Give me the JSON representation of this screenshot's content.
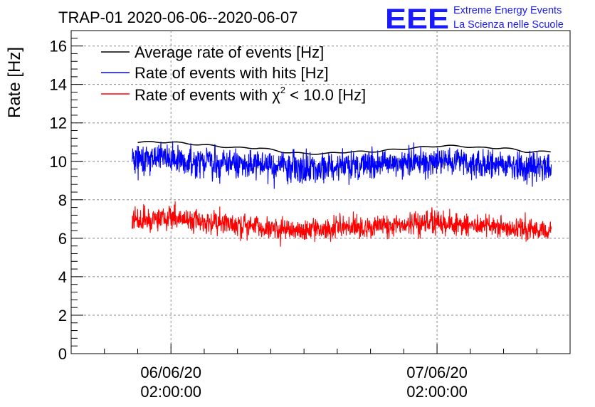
{
  "chart_data": {
    "type": "line",
    "title": "TRAP-01 2020-06-06--2020-06-07",
    "xlabel": "",
    "ylabel": "Rate [Hz]",
    "ylim": [
      0,
      16.8
    ],
    "yticks": [
      "0",
      "2",
      "4",
      "6",
      "8",
      "10",
      "12",
      "14",
      "16"
    ],
    "xlim_hours": [
      -9.0,
      36.0
    ],
    "xticks": [
      {
        "hours": 0,
        "date": "06/06/20",
        "time": "02:00:00"
      },
      {
        "hours": 24,
        "date": "07/06/20",
        "time": "02:00:00"
      }
    ],
    "grid": true,
    "legend_position": "top-left",
    "series": [
      {
        "name": "Average rate of events [Hz]",
        "color": "#000000",
        "style": "smooth",
        "x_hours": [
          -3.0,
          0,
          2,
          4,
          6,
          8,
          10,
          12,
          14,
          16,
          18,
          20,
          22,
          24,
          26,
          28,
          30,
          32,
          34.3
        ],
        "values": [
          11.0,
          11.0,
          10.9,
          10.8,
          10.7,
          10.7,
          10.5,
          10.4,
          10.4,
          10.5,
          10.5,
          10.6,
          10.7,
          10.8,
          10.8,
          10.7,
          10.7,
          10.5,
          10.5
        ]
      },
      {
        "name": "Rate of events with hits [Hz]",
        "color": "#0000ff",
        "style": "fluctuating",
        "x_hours": [
          -3.5,
          0,
          2,
          4,
          6,
          8,
          10,
          12,
          14,
          16,
          18,
          20,
          22,
          24,
          26,
          28,
          30,
          32,
          34.3
        ],
        "values": [
          10.1,
          10.2,
          10.0,
          9.9,
          9.8,
          9.8,
          9.7,
          9.6,
          9.6,
          9.8,
          9.8,
          9.9,
          9.9,
          10.0,
          10.0,
          9.9,
          9.8,
          9.7,
          9.6
        ],
        "noise": 0.38
      },
      {
        "name": "Rate of events with χ² < 10.0 [Hz]",
        "color": "#ff0000",
        "style": "fluctuating",
        "x_hours": [
          -3.5,
          0,
          2,
          4,
          6,
          8,
          10,
          12,
          14,
          16,
          18,
          20,
          22,
          24,
          26,
          28,
          30,
          32,
          34.3
        ],
        "values": [
          6.9,
          7.0,
          6.9,
          6.8,
          6.7,
          6.6,
          6.5,
          6.4,
          6.5,
          6.6,
          6.6,
          6.7,
          6.7,
          6.8,
          6.7,
          6.7,
          6.6,
          6.5,
          6.4
        ],
        "noise": 0.3
      }
    ]
  },
  "legend": {
    "avg_label": "Average rate of events [Hz]",
    "hits_label": "Rate of events with hits [Hz]",
    "chi_prefix": "Rate of events with ",
    "chi_symbol": "χ",
    "chi_exp": "2",
    "chi_suffix": " < 10.0 [Hz]"
  },
  "logo": {
    "letters": "EEE",
    "line1": "Extreme Energy Events",
    "line2": "La Scienza nelle Scuole",
    "color": "#1a1aff"
  }
}
